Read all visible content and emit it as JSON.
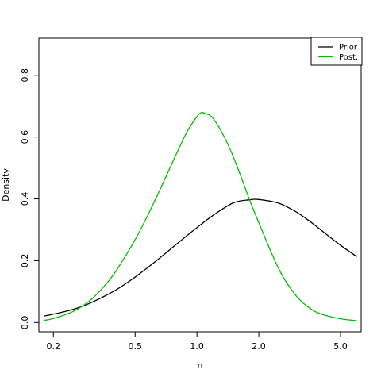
{
  "chart_data": {
    "type": "line",
    "title": "",
    "xlabel": "n",
    "ylabel": "Density",
    "x_scale": "log",
    "xlim": [
      0.17,
      6.3
    ],
    "ylim": [
      -0.03,
      0.92
    ],
    "x_ticks": [
      0.2,
      0.5,
      1.0,
      2.0,
      5.0
    ],
    "x_tick_labels": [
      "0.2",
      "0.5",
      "1.0",
      "2.0",
      "5.0"
    ],
    "y_ticks": [
      0.0,
      0.2,
      0.4,
      0.6,
      0.8
    ],
    "y_tick_labels": [
      "0.0",
      "0.2",
      "0.4",
      "0.6",
      "0.8"
    ],
    "grid": false,
    "legend": {
      "position": "top-right"
    },
    "series": [
      {
        "name": "Prior",
        "color": "#000000",
        "x": [
          0.18,
          0.2,
          0.25,
          0.3,
          0.4,
          0.5,
          0.6,
          0.7,
          0.8,
          1.0,
          1.2,
          1.5,
          1.8,
          2.0,
          2.5,
          3.0,
          3.5,
          4.0,
          5.0,
          6.0
        ],
        "y": [
          0.021,
          0.027,
          0.043,
          0.062,
          0.104,
          0.147,
          0.187,
          0.223,
          0.255,
          0.307,
          0.347,
          0.387,
          0.397,
          0.398,
          0.386,
          0.36,
          0.33,
          0.3,
          0.25,
          0.213
        ]
      },
      {
        "name": "Post.",
        "color": "#00bb00",
        "x": [
          0.18,
          0.2,
          0.25,
          0.3,
          0.35,
          0.4,
          0.5,
          0.6,
          0.7,
          0.8,
          0.9,
          1.0,
          1.05,
          1.1,
          1.2,
          1.4,
          1.6,
          1.8,
          2.0,
          2.5,
          3.0,
          3.5,
          4.0,
          5.0,
          6.0
        ],
        "y": [
          0.007,
          0.013,
          0.036,
          0.07,
          0.114,
          0.163,
          0.268,
          0.371,
          0.466,
          0.55,
          0.62,
          0.666,
          0.679,
          0.676,
          0.66,
          0.583,
          0.49,
          0.398,
          0.323,
          0.174,
          0.091,
          0.049,
          0.028,
          0.012,
          0.006
        ]
      }
    ]
  }
}
